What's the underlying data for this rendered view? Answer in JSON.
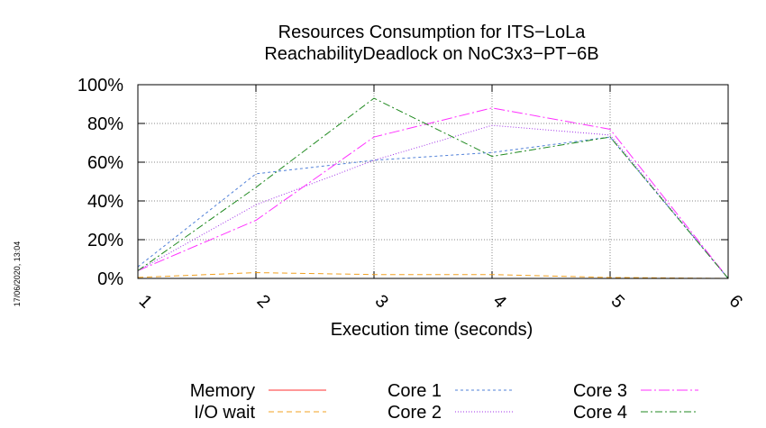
{
  "chart_data": {
    "type": "line",
    "title": "Resources Consumption for ITS−LoLa",
    "subtitle": "ReachabilityDeadlock on NoC3x3−PT−6B",
    "xlabel": "Execution time (seconds)",
    "ylabel": "",
    "side_label": "17/06/2020, 13:04",
    "x": [
      1,
      2,
      3,
      4,
      5,
      6
    ],
    "xlim": [
      1,
      6
    ],
    "ylim": [
      0,
      100
    ],
    "x_ticks": [
      "1",
      "2",
      "3",
      "4",
      "5",
      "6"
    ],
    "y_ticks": [
      "0%",
      "20%",
      "40%",
      "60%",
      "80%",
      "100%"
    ],
    "grid": true,
    "legend_position": "bottom",
    "series": [
      {
        "name": "Memory",
        "color": "#ff3030",
        "dash": "",
        "values": [
          0,
          0,
          0,
          0,
          0,
          0
        ]
      },
      {
        "name": "I/O wait",
        "color": "#f0a020",
        "dash": "6,4",
        "values": [
          0.5,
          3,
          2,
          2,
          0.5,
          0
        ]
      },
      {
        "name": "Core 1",
        "color": "#5080d8",
        "dash": "3,3",
        "values": [
          6,
          54,
          61,
          65,
          73,
          0
        ]
      },
      {
        "name": "Core 2",
        "color": "#a030e8",
        "dash": "1,2",
        "values": [
          4,
          38,
          61,
          79,
          74,
          0
        ]
      },
      {
        "name": "Core 3",
        "color": "#ff30ff",
        "dash": "12,3,2,3",
        "values": [
          4,
          30,
          73,
          88,
          77,
          0
        ]
      },
      {
        "name": "Core 4",
        "color": "#208a20",
        "dash": "8,3,2,3",
        "values": [
          4,
          47,
          93,
          63,
          73,
          0
        ]
      }
    ]
  }
}
